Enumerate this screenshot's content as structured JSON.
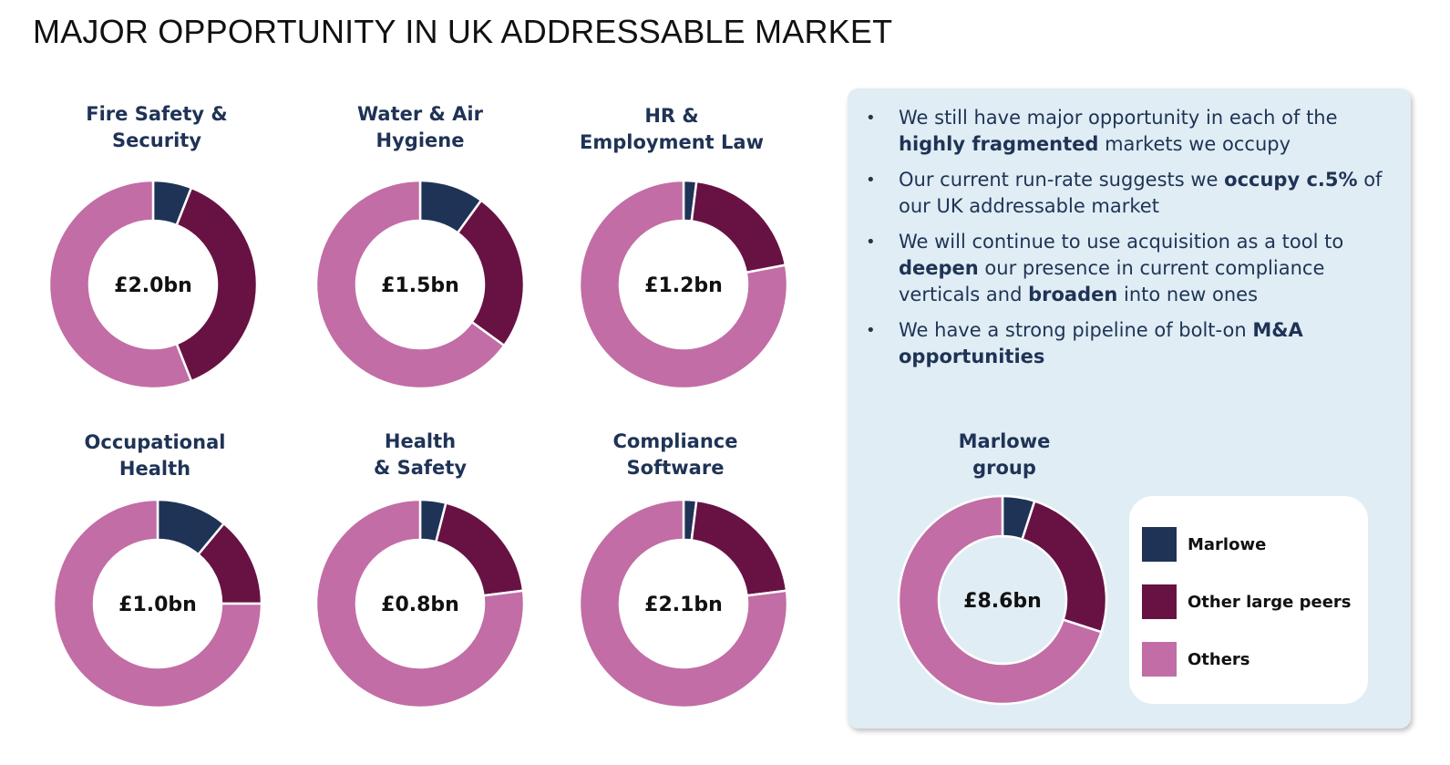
{
  "title": "MAJOR OPPORTUNITY IN UK ADDRESSABLE MARKET",
  "colors": {
    "marlowe": "#1f3356",
    "other_large_peers": "#681244",
    "others": "#c26da5"
  },
  "legend": [
    {
      "key": "marlowe",
      "label": "Marlowe"
    },
    {
      "key": "other_large_peers",
      "label": "Other large peers"
    },
    {
      "key": "others",
      "label": "Others"
    }
  ],
  "bullets": [
    {
      "parts": [
        {
          "t": "We still have major opportunity in each of the ",
          "b": false
        },
        {
          "t": "highly fragmented",
          "b": true
        },
        {
          "t": " markets we occupy",
          "b": false
        }
      ]
    },
    {
      "parts": [
        {
          "t": "Our current run-rate suggests we ",
          "b": false
        },
        {
          "t": "occupy c.5%",
          "b": true
        },
        {
          "t": " of our UK addressable market",
          "b": false
        }
      ]
    },
    {
      "parts": [
        {
          "t": "We will continue to use acquisition as a tool to ",
          "b": false
        },
        {
          "t": "deepen",
          "b": true
        },
        {
          "t": " our presence in current compliance verticals and ",
          "b": false
        },
        {
          "t": "broaden",
          "b": true
        },
        {
          "t": " into new ones",
          "b": false
        }
      ]
    },
    {
      "parts": [
        {
          "t": "We have a strong pipeline of bolt-on ",
          "b": false
        },
        {
          "t": "M&A opportunities",
          "b": true
        }
      ]
    }
  ],
  "chart_data": [
    {
      "type": "pie",
      "title": "Fire Safety &\nSecurity",
      "center_label": "£2.0bn",
      "series": [
        {
          "name": "Marlowe",
          "value": 6
        },
        {
          "name": "Other large peers",
          "value": 38
        },
        {
          "name": "Others",
          "value": 56
        }
      ]
    },
    {
      "type": "pie",
      "title": "Water & Air\nHygiene",
      "center_label": "£1.5bn",
      "series": [
        {
          "name": "Marlowe",
          "value": 10
        },
        {
          "name": "Other large peers",
          "value": 25
        },
        {
          "name": "Others",
          "value": 65
        }
      ]
    },
    {
      "type": "pie",
      "title": "HR &\nEmployment Law",
      "center_label": "£1.2bn",
      "series": [
        {
          "name": "Marlowe",
          "value": 2
        },
        {
          "name": "Other large peers",
          "value": 20
        },
        {
          "name": "Others",
          "value": 78
        }
      ]
    },
    {
      "type": "pie",
      "title": "Occupational\nHealth",
      "center_label": "£1.0bn",
      "series": [
        {
          "name": "Marlowe",
          "value": 11
        },
        {
          "name": "Other large peers",
          "value": 14
        },
        {
          "name": "Others",
          "value": 75
        }
      ]
    },
    {
      "type": "pie",
      "title": "Health\n& Safety",
      "center_label": "£0.8bn",
      "series": [
        {
          "name": "Marlowe",
          "value": 4
        },
        {
          "name": "Other large peers",
          "value": 19
        },
        {
          "name": "Others",
          "value": 77
        }
      ]
    },
    {
      "type": "pie",
      "title": "Compliance\nSoftware",
      "center_label": "£2.1bn",
      "series": [
        {
          "name": "Marlowe",
          "value": 2
        },
        {
          "name": "Other large peers",
          "value": 21
        },
        {
          "name": "Others",
          "value": 77
        }
      ]
    },
    {
      "type": "pie",
      "title": "Marlowe\ngroup",
      "center_label": "£8.6bn",
      "series": [
        {
          "name": "Marlowe",
          "value": 5
        },
        {
          "name": "Other large peers",
          "value": 25
        },
        {
          "name": "Others",
          "value": 70
        }
      ]
    }
  ]
}
